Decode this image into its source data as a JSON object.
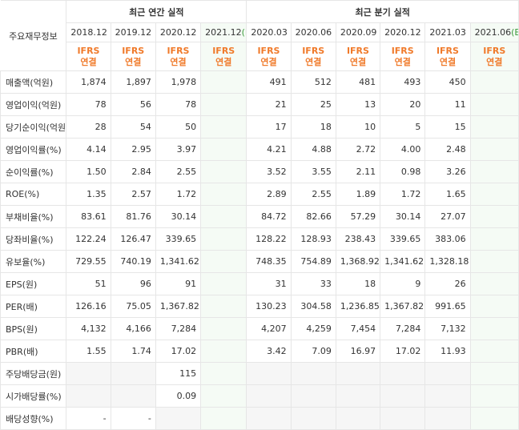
{
  "table": {
    "corner": "주요재무정보",
    "groups": [
      {
        "title": "최근 연간 실적",
        "columns": [
          {
            "date": "2018.12",
            "ifrs": "IFRS",
            "basis": "연결"
          },
          {
            "date": "2019.12",
            "ifrs": "IFRS",
            "basis": "연결"
          },
          {
            "date": "2020.12",
            "ifrs": "IFRS",
            "basis": "연결"
          },
          {
            "date": "2021.12",
            "mark": "(E)",
            "ifrs": "IFRS",
            "basis": "연결"
          }
        ]
      },
      {
        "title": "최근 분기 실적",
        "columns": [
          {
            "date": "2020.03",
            "ifrs": "IFRS",
            "basis": "연결"
          },
          {
            "date": "2020.06",
            "ifrs": "IFRS",
            "basis": "연결"
          },
          {
            "date": "2020.09",
            "ifrs": "IFRS",
            "basis": "연결"
          },
          {
            "date": "2020.12",
            "ifrs": "IFRS",
            "basis": "연결"
          },
          {
            "date": "2021.03",
            "ifrs": "IFRS",
            "basis": "연결"
          },
          {
            "date": "2021.06",
            "mark": "(E)",
            "ifrs": "IFRS",
            "basis": "연결"
          }
        ]
      }
    ],
    "rows": [
      {
        "label": "매출액(억원)",
        "values": [
          "1,874",
          "1,897",
          "1,978",
          null,
          "491",
          "512",
          "481",
          "493",
          "450",
          null
        ]
      },
      {
        "label": "영업이익(억원)",
        "values": [
          "78",
          "56",
          "78",
          null,
          "21",
          "25",
          "13",
          "20",
          "11",
          null
        ]
      },
      {
        "label": "당기순이익(억원)",
        "values": [
          "28",
          "54",
          "50",
          null,
          "17",
          "18",
          "10",
          "5",
          "15",
          null
        ]
      },
      {
        "label": "영업이익률(%)",
        "values": [
          "4.14",
          "2.95",
          "3.97",
          null,
          "4.21",
          "4.88",
          "2.72",
          "4.00",
          "2.48",
          null
        ]
      },
      {
        "label": "순이익률(%)",
        "values": [
          "1.50",
          "2.84",
          "2.55",
          null,
          "3.52",
          "3.55",
          "2.11",
          "0.98",
          "3.26",
          null
        ]
      },
      {
        "label": "ROE(%)",
        "values": [
          "1.35",
          "2.57",
          "1.72",
          null,
          "2.89",
          "2.55",
          "1.89",
          "1.72",
          "1.65",
          null
        ]
      },
      {
        "label": "부채비율(%)",
        "values": [
          "83.61",
          "81.76",
          "30.14",
          null,
          "84.72",
          "82.66",
          "57.29",
          "30.14",
          "27.07",
          null
        ]
      },
      {
        "label": "당좌비율(%)",
        "values": [
          "122.24",
          "126.47",
          "339.65",
          null,
          "128.22",
          "128.93",
          "238.43",
          "339.65",
          "383.06",
          null
        ]
      },
      {
        "label": "유보율(%)",
        "values": [
          "729.55",
          "740.19",
          "1,341.62",
          null,
          "748.35",
          "754.89",
          "1,368.92",
          "1,341.62",
          "1,328.18",
          null
        ]
      },
      {
        "label": "EPS(원)",
        "values": [
          "51",
          "96",
          "91",
          null,
          "31",
          "33",
          "18",
          "9",
          "26",
          null
        ]
      },
      {
        "label": "PER(배)",
        "values": [
          "126.16",
          "75.05",
          "1,367.82",
          null,
          "130.23",
          "304.58",
          "1,236.85",
          "1,367.82",
          "991.65",
          null
        ]
      },
      {
        "label": "BPS(원)",
        "values": [
          "4,132",
          "4,166",
          "7,284",
          null,
          "4,207",
          "4,259",
          "7,454",
          "7,284",
          "7,132",
          null
        ]
      },
      {
        "label": "PBR(배)",
        "values": [
          "1.55",
          "1.74",
          "17.02",
          null,
          "3.42",
          "7.09",
          "16.97",
          "17.02",
          "11.93",
          null
        ]
      },
      {
        "label": "주당배당금(원)",
        "values": [
          null,
          null,
          "115",
          null,
          null,
          null,
          null,
          null,
          null,
          null
        ]
      },
      {
        "label": "시가배당률(%)",
        "values": [
          null,
          null,
          "0.09",
          null,
          null,
          null,
          null,
          null,
          null,
          null
        ]
      },
      {
        "label": "배당성향(%)",
        "values": [
          "-",
          "-",
          null,
          null,
          null,
          null,
          null,
          null,
          null,
          null
        ]
      }
    ]
  }
}
